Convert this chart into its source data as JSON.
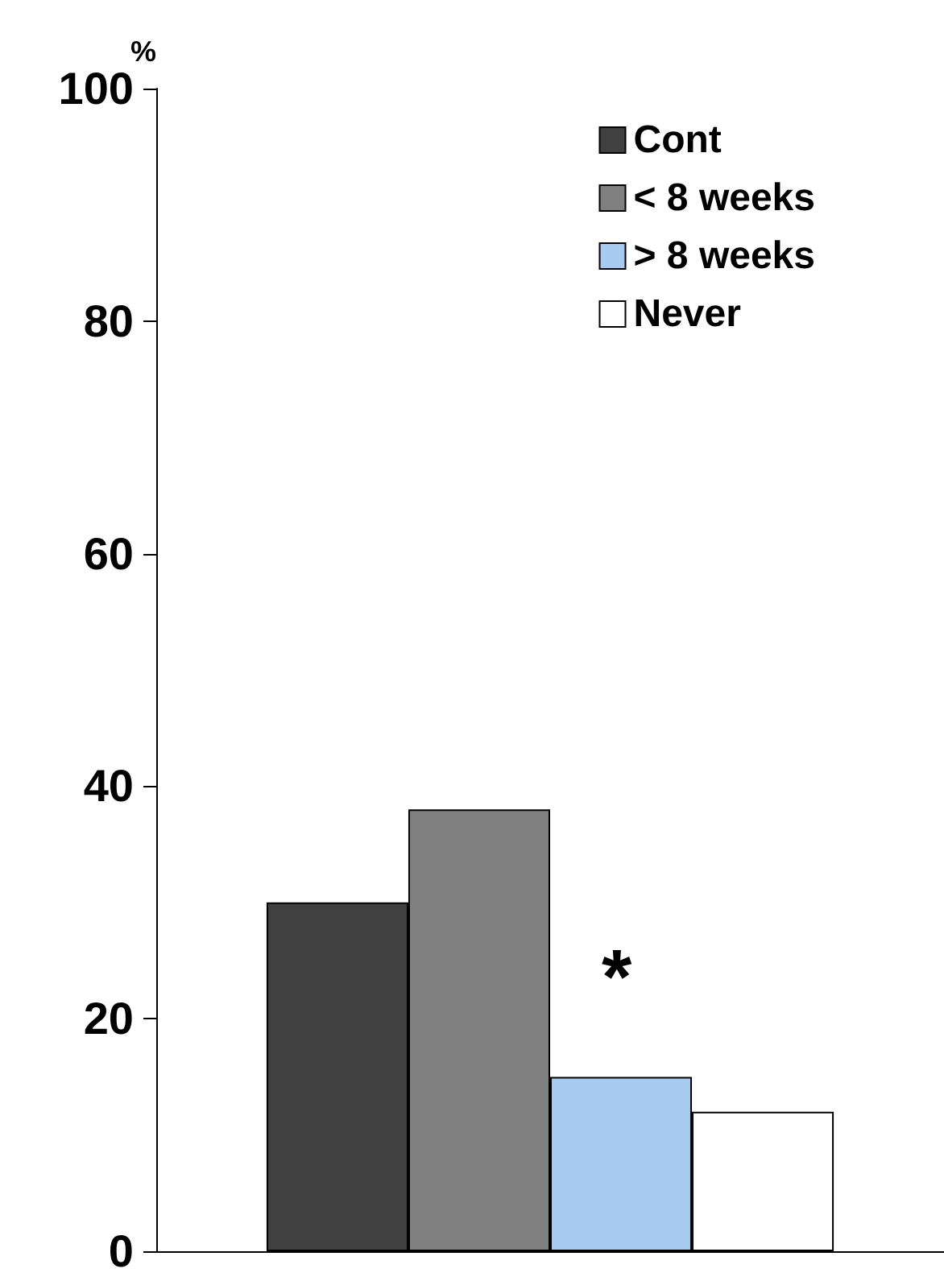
{
  "chart_data": {
    "type": "bar",
    "ylabel": "%",
    "categories": [
      null
    ],
    "series": [
      {
        "name": "Cont",
        "color": "#404040",
        "values": [
          30
        ]
      },
      {
        "name": "< 8 weeks",
        "color": "#808080",
        "values": [
          38
        ]
      },
      {
        "name": "> 8 weeks",
        "color": "#a6caf0",
        "values": [
          15
        ]
      },
      {
        "name": "Never",
        "color": "#ffffff",
        "values": [
          12
        ]
      }
    ],
    "annotations": [
      "*"
    ],
    "ylim": [
      0,
      100
    ],
    "yticks": [
      0,
      20,
      40,
      60,
      80,
      100
    ],
    "grid": false,
    "legend": "top right"
  }
}
